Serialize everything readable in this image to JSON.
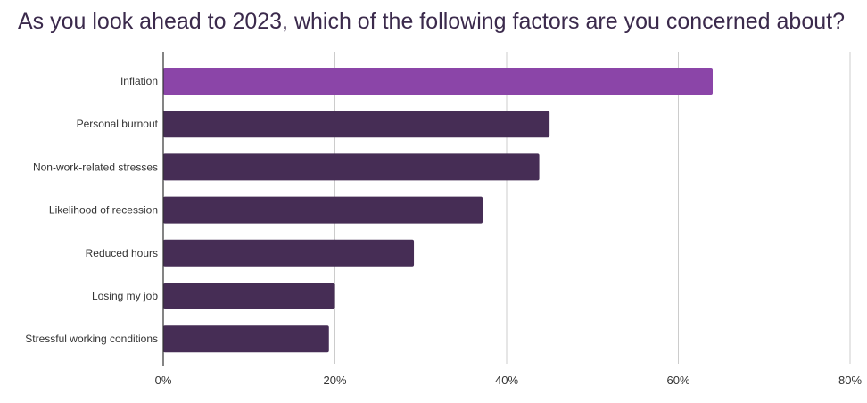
{
  "chart_data": {
    "type": "bar",
    "orientation": "horizontal",
    "title": "As you look ahead to 2023, which of the following factors are you concerned about?",
    "categories": [
      "Inflation",
      "Personal burnout",
      "Non-work-related stresses",
      "Likelihood of recession",
      "Reduced hours",
      "Losing my job",
      "Stressful working conditions"
    ],
    "values": [
      64,
      45,
      43.8,
      37.2,
      29.2,
      20,
      19.3
    ],
    "unit": "%",
    "xlim": [
      0,
      80
    ],
    "xticks": [
      "0%",
      "20%",
      "40%",
      "60%",
      "80%"
    ],
    "xtick_values": [
      0,
      20,
      40,
      60,
      80
    ],
    "grid": "vertical",
    "colors": {
      "highlight": "#8b45a8",
      "bar": "#462d55",
      "grid": "#cccccc",
      "axis": "#333333",
      "title": "#3b2a4c"
    },
    "highlight_index": 0
  }
}
